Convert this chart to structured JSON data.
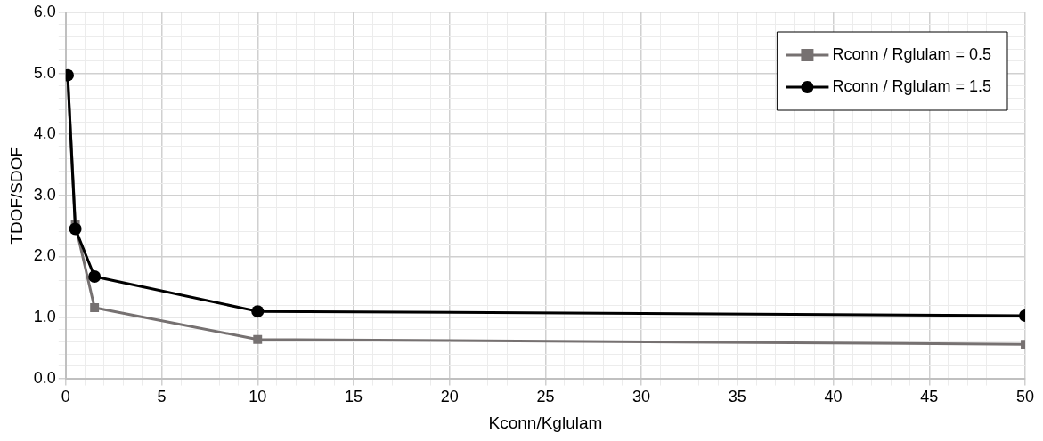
{
  "chart_data": {
    "type": "line",
    "xlabel": "Kconn/Kglulam",
    "ylabel": "TDOF/SDOF",
    "x": [
      0.1,
      0.5,
      1.5,
      10,
      50
    ],
    "series": [
      {
        "name": "Rconn / Rglulam = 0.5",
        "color": "#767171",
        "marker": "square",
        "values": [
          4.98,
          2.52,
          1.16,
          0.64,
          0.56
        ]
      },
      {
        "name": "Rconn / Rglulam = 1.5",
        "color": "#000000",
        "marker": "circle",
        "values": [
          4.97,
          2.45,
          1.67,
          1.1,
          1.03
        ]
      }
    ],
    "xlim": [
      0,
      50
    ],
    "xticks": [
      0,
      {
        "value": 1,
        "label": null
      },
      {
        "value": 2,
        "label": null
      },
      {
        "value": 3,
        "label": null
      },
      {
        "value": 4,
        "label": null
      },
      5,
      {
        "value": 6,
        "label": null
      },
      {
        "value": 7,
        "label": null
      },
      {
        "value": 8,
        "label": null
      },
      {
        "value": 9,
        "label": null
      },
      10,
      {
        "value": 11,
        "label": null
      },
      {
        "value": 12,
        "label": null
      },
      {
        "value": 13,
        "label": null
      },
      {
        "value": 14,
        "label": null
      },
      15,
      {
        "value": 16,
        "label": null
      },
      {
        "value": 17,
        "label": null
      },
      {
        "value": 18,
        "label": null
      },
      {
        "value": 19,
        "label": null
      },
      20,
      {
        "value": 21,
        "label": null
      },
      {
        "value": 22,
        "label": null
      },
      {
        "value": 23,
        "label": null
      },
      {
        "value": 24,
        "label": null
      },
      25,
      {
        "value": 26,
        "label": null
      },
      {
        "value": 27,
        "label": null
      },
      {
        "value": 28,
        "label": null
      },
      {
        "value": 29,
        "label": null
      },
      30,
      {
        "value": 31,
        "label": null
      },
      {
        "value": 32,
        "label": null
      },
      {
        "value": 33,
        "label": null
      },
      {
        "value": 34,
        "label": null
      },
      35,
      {
        "value": 36,
        "label": null
      },
      {
        "value": 37,
        "label": null
      },
      {
        "value": 38,
        "label": null
      },
      {
        "value": 39,
        "label": null
      },
      40,
      {
        "value": 41,
        "label": null
      },
      {
        "value": 42,
        "label": null
      },
      {
        "value": 43,
        "label": null
      },
      {
        "value": 44,
        "label": null
      },
      45,
      {
        "value": 46,
        "label": null
      },
      {
        "value": 47,
        "label": null
      },
      {
        "value": 48,
        "label": null
      },
      {
        "value": 49,
        "label": null
      },
      50
    ],
    "ylim": [
      0,
      6
    ],
    "yticks": [
      {
        "value": 0,
        "label": "0.0"
      },
      {
        "value": 0.2,
        "label": null
      },
      {
        "value": 0.4,
        "label": null
      },
      {
        "value": 0.6,
        "label": null
      },
      {
        "value": 0.8,
        "label": null
      },
      {
        "value": 1,
        "label": "1.0"
      },
      {
        "value": 1.2,
        "label": null
      },
      {
        "value": 1.4,
        "label": null
      },
      {
        "value": 1.6,
        "label": null
      },
      {
        "value": 1.8,
        "label": null
      },
      {
        "value": 2,
        "label": "2.0"
      },
      {
        "value": 2.2,
        "label": null
      },
      {
        "value": 2.4,
        "label": null
      },
      {
        "value": 2.6,
        "label": null
      },
      {
        "value": 2.8,
        "label": null
      },
      {
        "value": 3,
        "label": "3.0"
      },
      {
        "value": 3.2,
        "label": null
      },
      {
        "value": 3.4,
        "label": null
      },
      {
        "value": 3.6,
        "label": null
      },
      {
        "value": 3.8,
        "label": null
      },
      {
        "value": 4,
        "label": "4.0"
      },
      {
        "value": 4.2,
        "label": null
      },
      {
        "value": 4.4,
        "label": null
      },
      {
        "value": 4.6,
        "label": null
      },
      {
        "value": 4.8,
        "label": null
      },
      {
        "value": 5,
        "label": "5.0"
      },
      {
        "value": 5.2,
        "label": null
      },
      {
        "value": 5.4,
        "label": null
      },
      {
        "value": 5.6,
        "label": null
      },
      {
        "value": 5.8,
        "label": null
      },
      {
        "value": 6,
        "label": "6.0"
      }
    ],
    "grid": true,
    "legend": "top right",
    "line_style": "solid"
  }
}
